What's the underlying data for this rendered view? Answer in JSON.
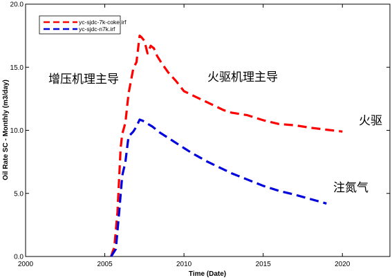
{
  "chart_data": {
    "type": "line",
    "title": "",
    "xlabel": "Time (Date)",
    "ylabel": "Oil Rate SC - Monthly (m3/day)",
    "xlim": [
      2000,
      2023
    ],
    "ylim": [
      0,
      20
    ],
    "xticks": [
      "2000",
      "2005",
      "2010",
      "2015",
      "2020"
    ],
    "yticks": [
      "0.0",
      "5.0",
      "10.0",
      "15.0",
      "20.0"
    ],
    "grid": false,
    "legend_position": "top-left",
    "series": [
      {
        "name": "yc-sjdc-7k-coke.irf",
        "color": "#ff0000",
        "style": "dashed",
        "x": [
          2005.4,
          2005.5,
          2005.6,
          2005.8,
          2006.0,
          2006.1,
          2006.3,
          2006.5,
          2006.8,
          2007.0,
          2007.2,
          2007.3,
          2007.5,
          2007.7,
          2007.9,
          2008.1,
          2008.3,
          2008.6,
          2009.0,
          2009.5,
          2010.0,
          2010.5,
          2011.0,
          2011.5,
          2012.0,
          2012.5,
          2013.0,
          2014.0,
          2015.0,
          2016.0,
          2017.0,
          2018.0,
          2019.0,
          2020.0
        ],
        "y": [
          0.0,
          0.4,
          0.7,
          3.5,
          8.6,
          9.7,
          10.6,
          12.9,
          14.9,
          15.4,
          17.5,
          17.4,
          17.1,
          16.1,
          16.7,
          16.5,
          15.9,
          15.3,
          14.6,
          13.9,
          13.1,
          12.8,
          12.5,
          12.2,
          11.9,
          11.6,
          11.4,
          11.2,
          10.8,
          10.5,
          10.4,
          10.2,
          10.05,
          9.9
        ]
      },
      {
        "name": "yc-sjdc-n7k.irf",
        "color": "#0000dd",
        "style": "dashed",
        "x": [
          2005.4,
          2005.5,
          2005.7,
          2005.9,
          2006.1,
          2006.3,
          2006.5,
          2006.8,
          2007.0,
          2007.2,
          2007.4,
          2007.6,
          2008.0,
          2008.5,
          2009.0,
          2009.5,
          2010.0,
          2010.5,
          2011.0,
          2011.5,
          2012.0,
          2013.0,
          2014.0,
          2015.0,
          2016.0,
          2017.0,
          2018.0,
          2019.0
        ],
        "y": [
          0.0,
          0.2,
          0.6,
          3.4,
          6.4,
          7.5,
          9.5,
          9.9,
          10.3,
          10.85,
          10.75,
          10.6,
          10.3,
          9.8,
          9.4,
          9.0,
          8.6,
          8.2,
          7.85,
          7.5,
          7.2,
          6.6,
          6.1,
          5.6,
          5.2,
          4.9,
          4.55,
          4.2
        ]
      }
    ],
    "annotations": [
      "增压机理主导",
      "火驱机理主导",
      "火驱",
      "注氮气"
    ]
  }
}
